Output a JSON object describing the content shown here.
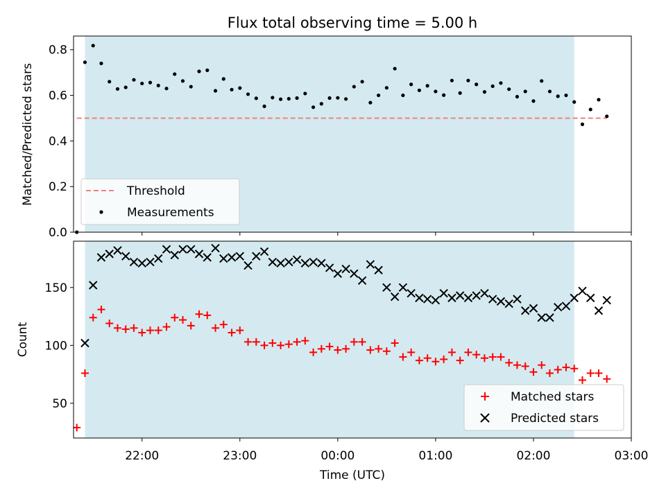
{
  "chart_data": [
    {
      "type": "scatter",
      "title": "Flux total observing time = 5.00 h",
      "xlabel": "",
      "ylabel": "Matched/Predicted stars",
      "ylim": [
        0,
        0.86
      ],
      "yticks": [
        0.0,
        0.2,
        0.4,
        0.6,
        0.8
      ],
      "ytick_labels": [
        "0.0",
        "0.2",
        "0.4",
        "0.6",
        "0.8"
      ],
      "xlim": [
        "21:18",
        "03:00"
      ],
      "xticks": [
        "22:00",
        "23:00",
        "00:00",
        "01:00",
        "02:00",
        "03:00"
      ],
      "shaded_span": {
        "start": "21:25",
        "end": "02:25",
        "color": "#d4eaf0"
      },
      "threshold": {
        "name": "Threshold",
        "value": 0.5,
        "from": "21:20",
        "to": "02:45",
        "color": "#f08080",
        "style": "dashed"
      },
      "legend": {
        "position": "lower-left",
        "entries": [
          "Threshold",
          "Measurements"
        ]
      },
      "series": [
        {
          "name": "Measurements",
          "marker": "dot",
          "color": "#000000",
          "x": [
            "21:20",
            "21:25",
            "21:30",
            "21:35",
            "21:40",
            "21:45",
            "21:50",
            "21:55",
            "22:00",
            "22:05",
            "22:10",
            "22:15",
            "22:20",
            "22:25",
            "22:30",
            "22:35",
            "22:40",
            "22:45",
            "22:50",
            "22:55",
            "23:00",
            "23:05",
            "23:10",
            "23:15",
            "23:20",
            "23:25",
            "23:30",
            "23:35",
            "23:40",
            "23:45",
            "23:50",
            "23:55",
            "00:00",
            "00:05",
            "00:10",
            "00:15",
            "00:20",
            "00:25",
            "00:30",
            "00:35",
            "00:40",
            "00:45",
            "00:50",
            "00:55",
            "01:00",
            "01:05",
            "01:10",
            "01:15",
            "01:20",
            "01:25",
            "01:30",
            "01:35",
            "01:40",
            "01:45",
            "01:50",
            "01:55",
            "02:00",
            "02:05",
            "02:10",
            "02:15",
            "02:20",
            "02:25",
            "02:30",
            "02:35",
            "02:40",
            "02:45"
          ],
          "values": [
            0.0,
            0.745,
            0.818,
            0.74,
            0.66,
            0.628,
            0.635,
            0.668,
            0.652,
            0.656,
            0.643,
            0.63,
            0.693,
            0.663,
            0.638,
            0.705,
            0.71,
            0.62,
            0.672,
            0.625,
            0.632,
            0.605,
            0.587,
            0.552,
            0.59,
            0.583,
            0.585,
            0.588,
            0.608,
            0.548,
            0.563,
            0.588,
            0.589,
            0.584,
            0.638,
            0.66,
            0.568,
            0.6,
            0.633,
            0.717,
            0.6,
            0.648,
            0.622,
            0.642,
            0.617,
            0.601,
            0.665,
            0.61,
            0.665,
            0.648,
            0.615,
            0.64,
            0.654,
            0.627,
            0.594,
            0.617,
            0.575,
            0.663,
            0.617,
            0.596,
            0.6,
            0.571,
            0.473,
            0.538,
            0.581,
            0.508
          ]
        }
      ]
    },
    {
      "type": "scatter",
      "title": "",
      "xlabel": "Time (UTC)",
      "ylabel": "Count",
      "ylim": [
        20,
        190
      ],
      "yticks": [
        50,
        100,
        150
      ],
      "ytick_labels": [
        "50",
        "100",
        "150"
      ],
      "xlim": [
        "21:18",
        "03:00"
      ],
      "xticks": [
        "22:00",
        "23:00",
        "00:00",
        "01:00",
        "02:00",
        "03:00"
      ],
      "shaded_span": {
        "start": "21:25",
        "end": "02:25",
        "color": "#d4eaf0"
      },
      "legend": {
        "position": "lower-right",
        "entries": [
          "Matched stars",
          "Predicted stars"
        ]
      },
      "series": [
        {
          "name": "Matched stars",
          "marker": "plus",
          "color": "#ff0000",
          "x": [
            "21:20",
            "21:25",
            "21:30",
            "21:35",
            "21:40",
            "21:45",
            "21:50",
            "21:55",
            "22:00",
            "22:05",
            "22:10",
            "22:15",
            "22:20",
            "22:25",
            "22:30",
            "22:35",
            "22:40",
            "22:45",
            "22:50",
            "22:55",
            "23:00",
            "23:05",
            "23:10",
            "23:15",
            "23:20",
            "23:25",
            "23:30",
            "23:35",
            "23:40",
            "23:45",
            "23:50",
            "23:55",
            "00:00",
            "00:05",
            "00:10",
            "00:15",
            "00:20",
            "00:25",
            "00:30",
            "00:35",
            "00:40",
            "00:45",
            "00:50",
            "00:55",
            "01:00",
            "01:05",
            "01:10",
            "01:15",
            "01:20",
            "01:25",
            "01:30",
            "01:35",
            "01:40",
            "01:45",
            "01:50",
            "01:55",
            "02:00",
            "02:05",
            "02:10",
            "02:15",
            "02:20",
            "02:25",
            "02:30",
            "02:35",
            "02:40",
            "02:45"
          ],
          "values": [
            29,
            76,
            124,
            131,
            119,
            115,
            114,
            115,
            111,
            113,
            113,
            116,
            124,
            122,
            117,
            127,
            126,
            115,
            118,
            111,
            113,
            103,
            103,
            100,
            102,
            100,
            101,
            103,
            104,
            94,
            97,
            99,
            96,
            97,
            103,
            103,
            96,
            97,
            95,
            102,
            90,
            94,
            87,
            89,
            86,
            88,
            94,
            87,
            94,
            92,
            89,
            90,
            90,
            85,
            83,
            82,
            77,
            83,
            76,
            79,
            81,
            80,
            70,
            76,
            76,
            71
          ]
        },
        {
          "name": "Predicted stars",
          "marker": "x",
          "color": "#000000",
          "x": [
            "21:25",
            "21:30",
            "21:35",
            "21:40",
            "21:45",
            "21:50",
            "21:55",
            "22:00",
            "22:05",
            "22:10",
            "22:15",
            "22:20",
            "22:25",
            "22:30",
            "22:35",
            "22:40",
            "22:45",
            "22:50",
            "22:55",
            "23:00",
            "23:05",
            "23:10",
            "23:15",
            "23:20",
            "23:25",
            "23:30",
            "23:35",
            "23:40",
            "23:45",
            "23:50",
            "23:55",
            "00:00",
            "00:05",
            "00:10",
            "00:15",
            "00:20",
            "00:25",
            "00:30",
            "00:35",
            "00:40",
            "00:45",
            "00:50",
            "00:55",
            "01:00",
            "01:05",
            "01:10",
            "01:15",
            "01:20",
            "01:25",
            "01:30",
            "01:35",
            "01:40",
            "01:45",
            "01:50",
            "01:55",
            "02:00",
            "02:05",
            "02:10",
            "02:15",
            "02:20",
            "02:25",
            "02:30",
            "02:35",
            "02:40",
            "02:45"
          ],
          "values": [
            102,
            152,
            176,
            179,
            182,
            177,
            172,
            171,
            172,
            175,
            183,
            178,
            183,
            183,
            179,
            176,
            184,
            175,
            176,
            177,
            169,
            177,
            181,
            172,
            171,
            172,
            174,
            171,
            172,
            171,
            167,
            162,
            166,
            162,
            156,
            170,
            165,
            150,
            142,
            150,
            145,
            141,
            140,
            139,
            145,
            141,
            143,
            141,
            143,
            145,
            140,
            138,
            136,
            140,
            130,
            132,
            124,
            124,
            133,
            134,
            141,
            147,
            141,
            130,
            139
          ]
        }
      ]
    }
  ],
  "colors": {
    "shade": "#d4eaf0",
    "threshold": "#f08080",
    "matched": "#ff0000",
    "predicted": "#000000",
    "measurement": "#000000"
  },
  "legend_marker_icons": [
    "dashed-line-icon",
    "dot-icon",
    "plus-icon",
    "x-icon"
  ]
}
